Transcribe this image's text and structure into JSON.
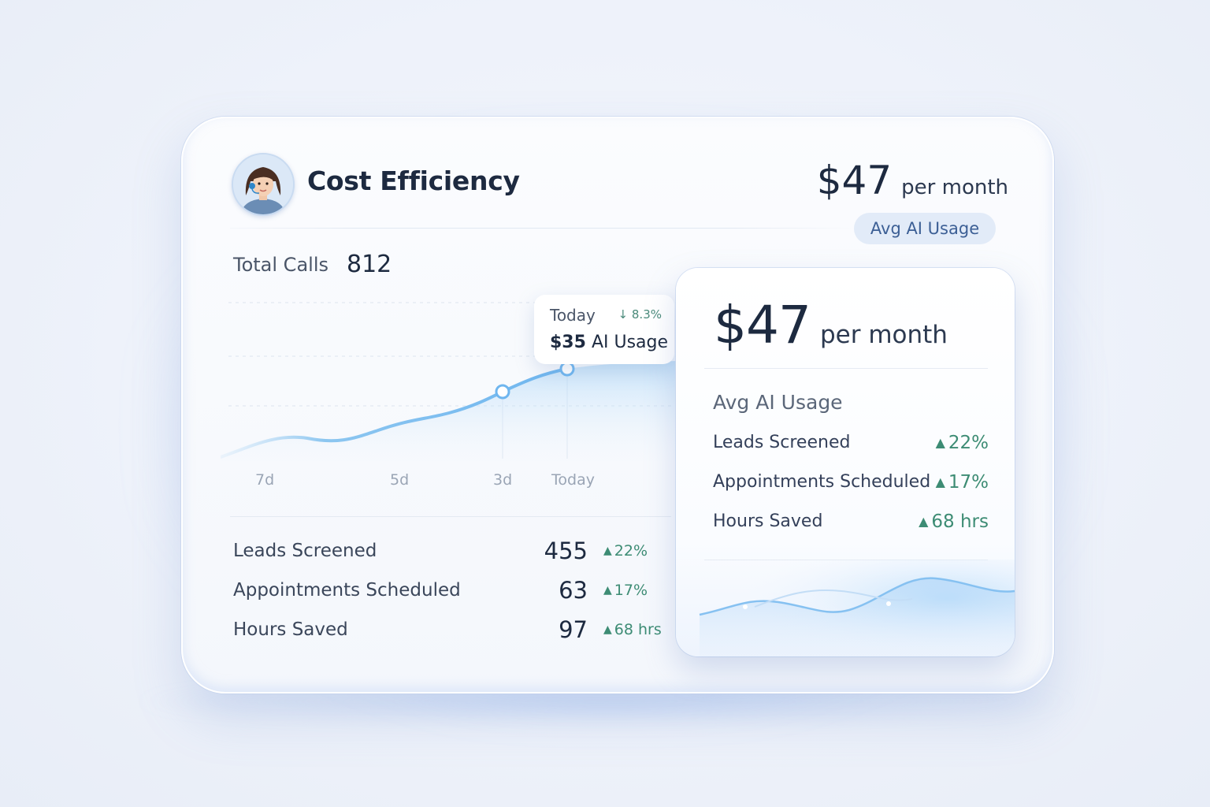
{
  "header": {
    "title": "Cost Efficiency",
    "price": "$47",
    "price_unit": "per month",
    "badge": "Avg AI Usage"
  },
  "total_calls": {
    "label": "Total Calls",
    "value": "812"
  },
  "chart": {
    "tooltip": {
      "label": "Today",
      "change": "↓ 8.3%",
      "amount": "$35",
      "amount_label": "AI Usage"
    },
    "x_ticks": [
      "7d",
      "5d",
      "3d",
      "Today"
    ]
  },
  "stats": [
    {
      "label": "Leads Screened",
      "value": "455",
      "change": "22%"
    },
    {
      "label": "Appointments Scheduled",
      "value": "63",
      "change": "17%"
    },
    {
      "label": "Hours Saved",
      "value": "97",
      "change": "68 hrs"
    }
  ],
  "panel": {
    "price": "$47",
    "price_unit": "per month",
    "subtitle": "Avg AI Usage",
    "rows": [
      {
        "label": "Leads Screened",
        "change": "22%"
      },
      {
        "label": "Appointments Scheduled",
        "change": "17%"
      },
      {
        "label": "Hours Saved",
        "change": "68 hrs"
      }
    ]
  },
  "colors": {
    "accent": "#6fb6ef",
    "positive": "#3d8c74",
    "badge_bg": "#e2ebf8",
    "text_dark": "#1d2a40"
  },
  "icons": {
    "avatar": "agent-avatar-icon",
    "up_arrow": "up-arrow-icon"
  }
}
